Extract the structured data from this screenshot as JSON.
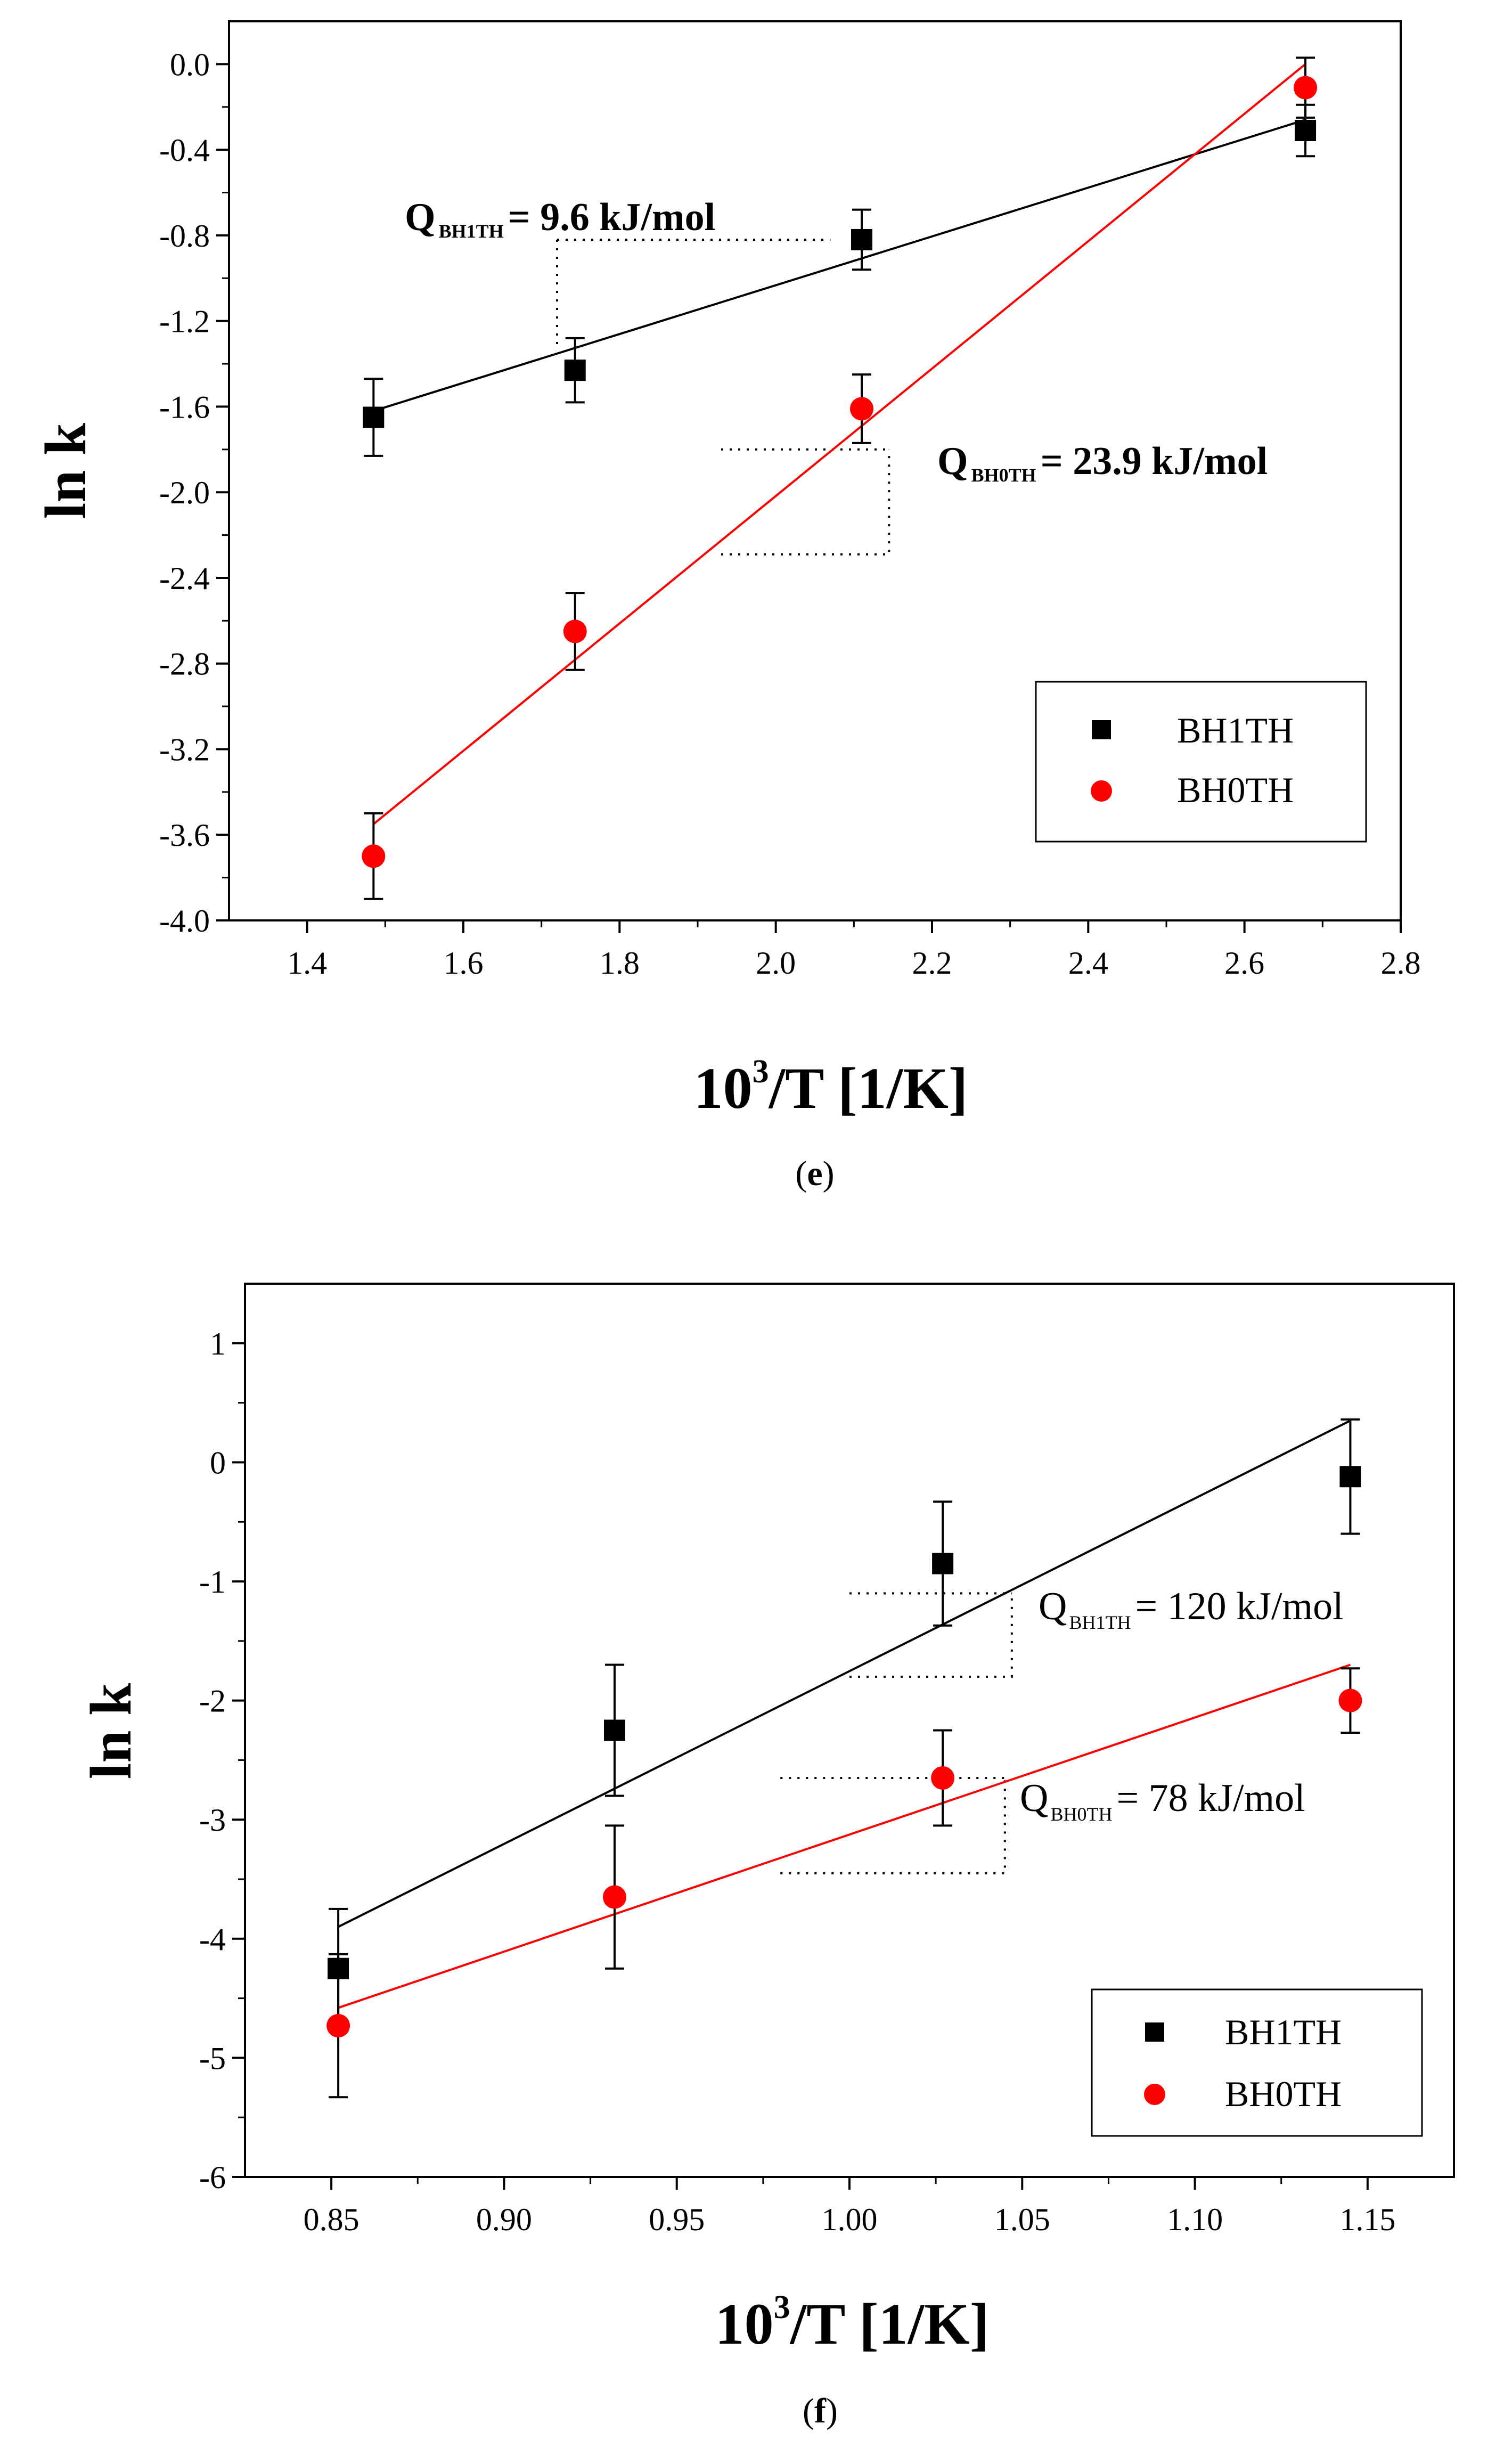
{
  "chart_data": [
    {
      "type": "scatter",
      "caption_letter": "e",
      "xlabel_main": "10",
      "xlabel_sup": "3",
      "xlabel_tail": "/T [1/K]",
      "ylabel": "ln k",
      "xlim": [
        1.3,
        2.8
      ],
      "ylim": [
        -4.0,
        0.2
      ],
      "x_ticks": [
        1.4,
        1.6,
        1.8,
        2.0,
        2.2,
        2.4,
        2.6,
        2.8
      ],
      "x_tick_labels": [
        "1.4",
        "1.6",
        "1.8",
        "2.0",
        "2.2",
        "2.4",
        "2.6",
        "2.8"
      ],
      "y_ticks": [
        0.0,
        -0.4,
        -0.8,
        -1.2,
        -1.6,
        -2.0,
        -2.4,
        -2.8,
        -3.2,
        -3.6,
        -4.0
      ],
      "y_tick_labels": [
        "0.0",
        "-0.4",
        "-0.8",
        "-1.2",
        "-1.6",
        "-2.0",
        "-2.4",
        "-2.8",
        "-3.2",
        "-3.6",
        "-4.0"
      ],
      "legend_position": "lower-right",
      "series": [
        {
          "name": "BH1TH",
          "color": "#000000",
          "marker": "square",
          "x": [
            1.485,
            1.743,
            2.11,
            2.678
          ],
          "y": [
            -1.65,
            -1.43,
            -0.82,
            -0.31
          ],
          "err": [
            0.18,
            0.15,
            0.14,
            0.12
          ],
          "fit": [
            [
              1.485,
              -1.62
            ],
            [
              2.678,
              -0.26
            ]
          ],
          "annotation": {
            "q_label": "Q",
            "subscript": "BH1TH",
            "value_text": "= 9.6 kJ/mol",
            "bold": true
          },
          "triangle": {
            "x_left": 1.72,
            "x_right": 2.07,
            "y_top": -0.82,
            "y_bottom": -1.32
          }
        },
        {
          "name": "BH0TH",
          "color": "#ff0000",
          "marker": "circle",
          "x": [
            1.485,
            1.743,
            2.11,
            2.678
          ],
          "y": [
            -3.7,
            -2.65,
            -1.61,
            -0.11
          ],
          "err": [
            0.2,
            0.18,
            0.16,
            0.14
          ],
          "fit": [
            [
              1.485,
              -3.55
            ],
            [
              2.678,
              0.0
            ]
          ],
          "annotation": {
            "q_label": "Q",
            "subscript": "BH0TH",
            "value_text": "= 23.9 kJ/mol",
            "bold": true
          },
          "triangle": {
            "x_left": 1.93,
            "x_right": 2.145,
            "y_top": -1.8,
            "y_bottom": -2.29
          }
        }
      ]
    },
    {
      "type": "scatter",
      "caption_letter": "f",
      "xlabel_main": "10",
      "xlabel_sup": "3",
      "xlabel_tail": "/T [1/K]",
      "ylabel": "ln k",
      "xlim": [
        0.825,
        1.175
      ],
      "ylim": [
        -6,
        1.5
      ],
      "x_ticks": [
        0.85,
        0.9,
        0.95,
        1.0,
        1.05,
        1.1,
        1.15
      ],
      "x_tick_labels": [
        "0.85",
        "0.90",
        "0.95",
        "1.00",
        "1.05",
        "1.10",
        "1.15"
      ],
      "y_ticks": [
        1,
        0,
        -1,
        -2,
        -3,
        -4,
        -5,
        -6
      ],
      "y_tick_labels": [
        "1",
        "0",
        "-1",
        "-2",
        "-3",
        "-4",
        "-5",
        "-6"
      ],
      "legend_position": "lower-right",
      "series": [
        {
          "name": "BH1TH",
          "color": "#000000",
          "marker": "square",
          "x": [
            0.852,
            0.932,
            1.027,
            1.145
          ],
          "y": [
            -4.25,
            -2.25,
            -0.85,
            -0.12
          ],
          "err": [
            0.5,
            0.55,
            0.52,
            0.48
          ],
          "fit": [
            [
              0.852,
              -3.9
            ],
            [
              1.145,
              0.35
            ]
          ],
          "annotation": {
            "q_label": "Q",
            "subscript": "BH1TH",
            "value_text": "= 120 kJ/mol",
            "bold": false
          },
          "triangle": {
            "x_left": 1.0,
            "x_right": 1.047,
            "y_top": -1.1,
            "y_bottom": -1.8
          }
        },
        {
          "name": "BH0TH",
          "color": "#ff0000",
          "marker": "circle",
          "x": [
            0.852,
            0.932,
            1.027,
            1.145
          ],
          "y": [
            -4.73,
            -3.65,
            -2.65,
            -2.0
          ],
          "err": [
            0.6,
            0.6,
            0.4,
            0.27
          ],
          "fit": [
            [
              0.852,
              -4.58
            ],
            [
              1.145,
              -1.7
            ]
          ],
          "annotation": {
            "q_label": "Q",
            "subscript": "BH0TH",
            "value_text": "= 78 kJ/mol",
            "bold": false
          },
          "triangle": {
            "x_left": 0.98,
            "x_right": 1.045,
            "y_top": -2.65,
            "y_bottom": -3.45
          }
        }
      ]
    }
  ]
}
